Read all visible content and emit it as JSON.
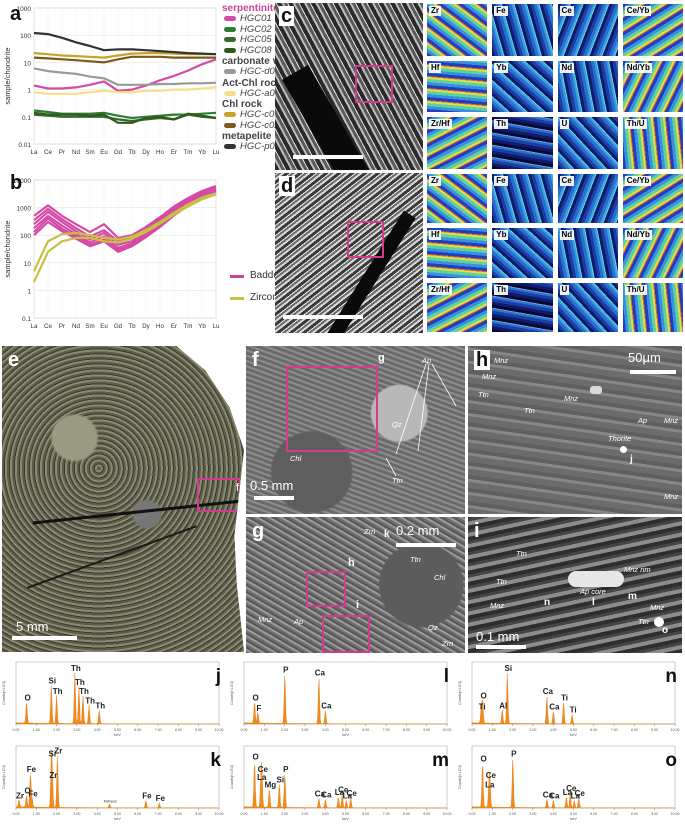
{
  "panel_a": {
    "letter": "a",
    "ylabel": "sample/chondrite",
    "yticks": [
      "1000",
      "100",
      "10",
      "1",
      "0.1",
      "0.01"
    ],
    "xticks": [
      "La",
      "Ce",
      "Pr",
      "Nd",
      "Sm",
      "Eu",
      "Gd",
      "Tb",
      "Dy",
      "Ho",
      "Er",
      "Tm",
      "Yb",
      "Lu"
    ]
  },
  "legend_a": {
    "groups": [
      {
        "title": "serpentinite",
        "title_color": "#c9439b",
        "items": [
          {
            "label": "HGC01",
            "color": "#d44aa6"
          },
          {
            "label": "HGC02",
            "color": "#2e7d32"
          },
          {
            "label": "HGC05",
            "color": "#386a2a"
          },
          {
            "label": "HGC08",
            "color": "#2e5a1c"
          }
        ]
      },
      {
        "title": "carbonate vein",
        "title_color": "#444444",
        "items": [
          {
            "label": "HGC-d01",
            "color": "#999999"
          }
        ]
      },
      {
        "title": "Act-Chl rock",
        "title_color": "#444444",
        "items": [
          {
            "label": "HGC-a01",
            "color": "#f3e089"
          }
        ]
      },
      {
        "title": "Chl rock",
        "title_color": "#444444",
        "items": [
          {
            "label": "HGC-c01",
            "color": "#c9a227"
          },
          {
            "label": "HGC-c02",
            "color": "#7a5a1a"
          }
        ]
      },
      {
        "title": "metapelite",
        "title_color": "#444444",
        "items": [
          {
            "label": "HGC-p01",
            "color": "#333333"
          }
        ]
      }
    ]
  },
  "panel_b": {
    "letter": "b",
    "ylabel": "sample/chondrite",
    "yticks": [
      "10000",
      "1000",
      "100",
      "10",
      "1",
      "0.1"
    ],
    "xticks": [
      "La",
      "Ce",
      "Pr",
      "Nd",
      "Sm",
      "Eu",
      "Gd",
      "Tb",
      "Dy",
      "Ho",
      "Er",
      "Tm",
      "Yb",
      "Lu"
    ]
  },
  "legend_b": [
    {
      "label": "Baddelyite",
      "color": "#c9439b"
    },
    {
      "label": "Zircon",
      "color": "#c8c040"
    }
  ],
  "chart_data": [
    {
      "type": "line",
      "panel": "a",
      "ylabel": "sample/chondrite",
      "yscale": "log",
      "ylim": [
        0.01,
        1000
      ],
      "x": [
        "La",
        "Ce",
        "Pr",
        "Nd",
        "Sm",
        "Eu",
        "Gd",
        "Tb",
        "Dy",
        "Ho",
        "Er",
        "Tm",
        "Yb",
        "Lu"
      ],
      "series": [
        {
          "name": "HGC01",
          "color": "#d44aa6",
          "values": [
            1.4,
            1.1,
            1.1,
            1.2,
            1.5,
            2.0,
            0.9,
            1.0,
            1.4,
            2.2,
            3.2,
            5.0,
            8.5,
            13
          ]
        },
        {
          "name": "HGC02",
          "color": "#2e7d32",
          "values": [
            0.17,
            0.15,
            0.13,
            0.13,
            0.13,
            0.14,
            0.11,
            0.09,
            0.1,
            0.11,
            0.12,
            0.12,
            0.13,
            0.14
          ]
        },
        {
          "name": "HGC05",
          "color": "#386a2a",
          "values": [
            0.12,
            0.11,
            0.1,
            0.1,
            0.1,
            0.1,
            0.08,
            0.07,
            0.08,
            0.09,
            0.08,
            0.12,
            0.1,
            0.09
          ]
        },
        {
          "name": "HGC08",
          "color": "#2e5a1c",
          "values": [
            0.14,
            0.12,
            0.12,
            0.12,
            0.11,
            0.12,
            0.06,
            0.06,
            0.09,
            0.1,
            0.08,
            0.13,
            0.11,
            0.09
          ]
        },
        {
          "name": "HGC-d01",
          "color": "#999999",
          "values": [
            6,
            4.8,
            4.2,
            3.8,
            3.0,
            2.6,
            1.5,
            1.5,
            1.5,
            1.6,
            1.6,
            1.7,
            1.7,
            1.8
          ]
        },
        {
          "name": "HGC-a01",
          "color": "#f3e089",
          "values": [
            0.8,
            0.7,
            0.7,
            0.7,
            0.8,
            0.9,
            0.8,
            0.8,
            0.9,
            0.9,
            1.0,
            1.0,
            1.1,
            1.2
          ]
        },
        {
          "name": "HGC-c01",
          "color": "#c9a227",
          "values": [
            22,
            20,
            18,
            17,
            16,
            15,
            18,
            21,
            22,
            22,
            21,
            20,
            20,
            20
          ]
        },
        {
          "name": "HGC-c02",
          "color": "#7a5a1a",
          "values": [
            15,
            14,
            13,
            12,
            11,
            10,
            13,
            16,
            16,
            16,
            15,
            15,
            15,
            15
          ]
        },
        {
          "name": "HGC-p01",
          "color": "#333333",
          "values": [
            120,
            110,
            80,
            55,
            40,
            28,
            30,
            30,
            28,
            26,
            24,
            22,
            21,
            20
          ]
        }
      ]
    },
    {
      "type": "line",
      "panel": "b",
      "ylabel": "sample/chondrite",
      "yscale": "log",
      "ylim": [
        0.1,
        10000
      ],
      "x": [
        "La",
        "Ce",
        "Pr",
        "Nd",
        "Sm",
        "Eu",
        "Gd",
        "Tb",
        "Dy",
        "Ho",
        "Er",
        "Tm",
        "Yb",
        "Lu"
      ],
      "series": [
        {
          "name": "Baddelyite",
          "color": "#d44aa6",
          "values": [
            500,
            1200,
            500,
            250,
            130,
            250,
            80,
            100,
            200,
            450,
            1100,
            2200,
            4000,
            6000
          ]
        },
        {
          "name": "Baddelyite",
          "color": "#d44aa6",
          "values": [
            350,
            900,
            380,
            180,
            90,
            150,
            60,
            80,
            160,
            380,
            900,
            1900,
            3500,
            5500
          ]
        },
        {
          "name": "Baddelyite",
          "color": "#d44aa6",
          "values": [
            250,
            700,
            300,
            140,
            70,
            120,
            45,
            60,
            130,
            320,
            800,
            1700,
            3200,
            5000
          ]
        },
        {
          "name": "Baddelyite",
          "color": "#d44aa6",
          "values": [
            180,
            500,
            220,
            110,
            55,
            90,
            35,
            50,
            110,
            270,
            700,
            1500,
            2900,
            4500
          ]
        },
        {
          "name": "Baddelyite",
          "color": "#d44aa6",
          "values": [
            130,
            400,
            170,
            90,
            45,
            70,
            30,
            45,
            95,
            230,
            600,
            1300,
            2600,
            4000
          ]
        },
        {
          "name": "Baddelyite",
          "color": "#d44aa6",
          "values": [
            100,
            300,
            140,
            75,
            40,
            60,
            25,
            40,
            85,
            200,
            520,
            1150,
            2300,
            3600
          ]
        },
        {
          "name": "Zircon",
          "color": "#c8c040",
          "values": [
            5,
            60,
            110,
            120,
            100,
            80,
            70,
            90,
            150,
            300,
            650,
            1300,
            2300,
            3300
          ]
        },
        {
          "name": "Zircon",
          "color": "#c8c040",
          "values": [
            2,
            25,
            60,
            80,
            80,
            60,
            55,
            75,
            130,
            260,
            560,
            1100,
            2000,
            3000
          ]
        }
      ]
    }
  ],
  "panel_c": {
    "letter": "c",
    "maps": [
      "Zr",
      "Fe",
      "Ce",
      "Ce/Yb",
      "Hf",
      "Yb",
      "Nd",
      "Nd/Yb",
      "Zr/Hf",
      "Th",
      "U",
      "Th/U"
    ]
  },
  "panel_d": {
    "letter": "d",
    "maps": [
      "Zr",
      "Fe",
      "Ce",
      "Ce/Yb",
      "Hf",
      "Yb",
      "Nd",
      "Nd/Yb",
      "Zr/Hf",
      "Th",
      "U",
      "Th/U"
    ]
  },
  "panel_e": {
    "letter": "e",
    "scale": "5 mm",
    "marker": "f"
  },
  "panel_f": {
    "letter": "f",
    "scale": "0.5 mm",
    "marker": "g",
    "labels": {
      "ap": "Ap",
      "qz": "Qz",
      "chl": "Chl",
      "ttn": "Ttn"
    }
  },
  "panel_h": {
    "letter": "h",
    "scale": "50μm",
    "labels": {
      "mnz1": "Mnz",
      "mnz2": "Mnz",
      "ttn1": "Ttn",
      "ttn2": "Ttn",
      "mnz3": "Mnz",
      "ap": "Ap",
      "mnz4": "Mnz",
      "thorite": "Thorite",
      "j": "j",
      "mnz5": "Mnz"
    }
  },
  "panel_g": {
    "letter": "g",
    "scale": "0.2 mm",
    "labels": {
      "zrn": "Zrn",
      "k": "k",
      "h": "h",
      "ttn": "Ttn",
      "chl": "Chl",
      "qz": "Qz",
      "mnz": "Mnz",
      "ap": "Ap",
      "i": "i",
      "zrn2": "Zrn"
    }
  },
  "panel_i": {
    "letter": "i",
    "scale": "0.1 mm",
    "labels": {
      "ttn1": "Ttn",
      "ttn2": "Ttn",
      "mnzrim": "Mnz rim",
      "aprim": "Ap core",
      "l": "l",
      "m": "m",
      "n": "n",
      "mnz1": "Mnz",
      "ttn3": "Ttn",
      "mnz2": "Mnz",
      "o": "o"
    }
  },
  "eds": {
    "ylabel": "Counts[×1.E3]",
    "xlabel": "keV",
    "xticks": [
      "0.00",
      "1.00",
      "2.00",
      "3.00",
      "4.00",
      "5.00",
      "6.00",
      "7.00",
      "8.00",
      "9.00",
      "10.00"
    ],
    "spectra": [
      {
        "letter": "j",
        "peaks": [
          {
            "label": "O",
            "x": 0.52,
            "h": 0.35
          },
          {
            "label": "Si",
            "x": 1.74,
            "h": 0.62
          },
          {
            "label": "Th",
            "x": 2.0,
            "h": 0.45
          },
          {
            "label": "Th",
            "x": 2.9,
            "h": 0.82
          },
          {
            "label": "Th",
            "x": 3.1,
            "h": 0.6
          },
          {
            "label": "Th",
            "x": 3.3,
            "h": 0.45
          },
          {
            "label": "Th",
            "x": 3.6,
            "h": 0.3
          },
          {
            "label": "Th",
            "x": 4.1,
            "h": 0.22
          }
        ]
      },
      {
        "letter": "l",
        "peaks": [
          {
            "label": "O",
            "x": 0.52,
            "h": 0.35
          },
          {
            "label": "F",
            "x": 0.68,
            "h": 0.18
          },
          {
            "label": "P",
            "x": 2.01,
            "h": 0.8
          },
          {
            "label": "Ca",
            "x": 3.69,
            "h": 0.75
          },
          {
            "label": "Ca",
            "x": 4.01,
            "h": 0.22
          }
        ]
      },
      {
        "letter": "n",
        "peaks": [
          {
            "label": "Ti",
            "x": 0.45,
            "h": 0.2
          },
          {
            "label": "O",
            "x": 0.52,
            "h": 0.38
          },
          {
            "label": "Al",
            "x": 1.49,
            "h": 0.22
          },
          {
            "label": "Si",
            "x": 1.74,
            "h": 0.82
          },
          {
            "label": "Ca",
            "x": 3.69,
            "h": 0.45
          },
          {
            "label": "Ti",
            "x": 4.51,
            "h": 0.35
          },
          {
            "label": "Ca",
            "x": 4.01,
            "h": 0.2
          },
          {
            "label": "Ti",
            "x": 4.93,
            "h": 0.15
          }
        ]
      },
      {
        "letter": "k",
        "peaks": [
          {
            "label": "Zr",
            "x": 0.15,
            "h": 0.12
          },
          {
            "label": "O",
            "x": 0.52,
            "h": 0.2
          },
          {
            "label": "Fe",
            "x": 0.71,
            "h": 0.55
          },
          {
            "label": "Fe",
            "x": 0.79,
            "h": 0.15
          },
          {
            "label": "Si",
            "x": 1.74,
            "h": 0.8
          },
          {
            "label": "Zr",
            "x": 2.04,
            "h": 0.85
          },
          {
            "label": "Zr",
            "x": 1.79,
            "h": 0.45
          },
          {
            "label": "FeKesc",
            "x": 4.6,
            "h": 0.06
          },
          {
            "label": "Fe",
            "x": 6.4,
            "h": 0.12
          },
          {
            "label": "Fe",
            "x": 7.06,
            "h": 0.08
          }
        ]
      },
      {
        "letter": "m",
        "peaks": [
          {
            "label": "O",
            "x": 0.52,
            "h": 0.75
          },
          {
            "label": "Ce",
            "x": 0.88,
            "h": 0.55
          },
          {
            "label": "La",
            "x": 0.83,
            "h": 0.42
          },
          {
            "label": "Mg",
            "x": 1.25,
            "h": 0.3
          },
          {
            "label": "Si",
            "x": 1.74,
            "h": 0.38
          },
          {
            "label": "P",
            "x": 2.01,
            "h": 0.55
          },
          {
            "label": "Ca",
            "x": 3.69,
            "h": 0.15
          },
          {
            "label": "Ca",
            "x": 4.01,
            "h": 0.14
          },
          {
            "label": "La",
            "x": 4.65,
            "h": 0.18
          },
          {
            "label": "Ce",
            "x": 4.84,
            "h": 0.22
          },
          {
            "label": "Ce",
            "x": 5.26,
            "h": 0.16
          },
          {
            "label": "La",
            "x": 5.04,
            "h": 0.12
          }
        ]
      },
      {
        "letter": "o",
        "peaks": [
          {
            "label": "O",
            "x": 0.52,
            "h": 0.72
          },
          {
            "label": "Ce",
            "x": 0.88,
            "h": 0.45
          },
          {
            "label": "La",
            "x": 0.83,
            "h": 0.3
          },
          {
            "label": "P",
            "x": 2.01,
            "h": 0.8
          },
          {
            "label": "Ca",
            "x": 3.69,
            "h": 0.14
          },
          {
            "label": "Ca",
            "x": 4.01,
            "h": 0.12
          },
          {
            "label": "La",
            "x": 4.65,
            "h": 0.18
          },
          {
            "label": "Ce",
            "x": 4.84,
            "h": 0.24
          },
          {
            "label": "Ce",
            "x": 5.26,
            "h": 0.16
          },
          {
            "label": "La",
            "x": 5.04,
            "h": 0.12
          }
        ]
      }
    ]
  }
}
